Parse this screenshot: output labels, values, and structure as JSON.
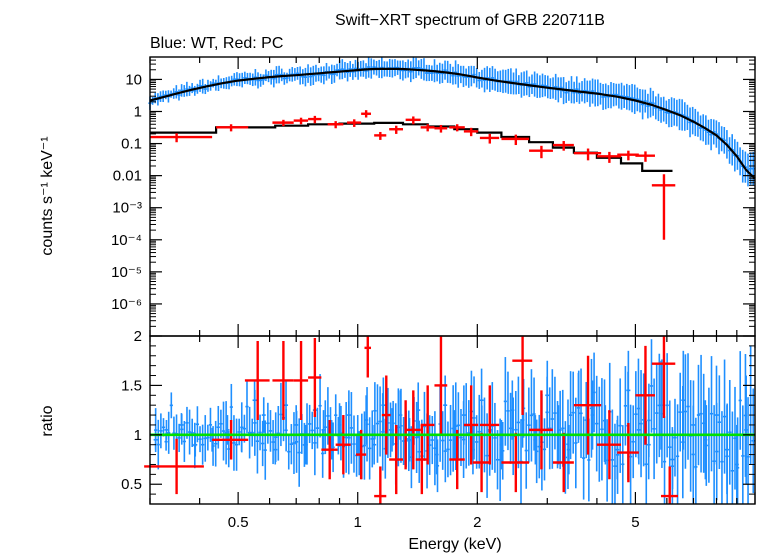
{
  "title": "Swift−XRT spectrum of GRB 220711B",
  "subtitle": "Blue: WT, Red: PC",
  "colors": {
    "wt": "#1e8fff",
    "pc": "#ff0000",
    "model": "#000000",
    "unity": "#00e000"
  },
  "chart_data": [
    {
      "type": "scatter",
      "panel": "spectrum",
      "xscale": "log",
      "yscale": "log",
      "xlim": [
        0.3,
        10
      ],
      "ylim": [
        1e-07,
        50
      ],
      "ylabel": "counts s⁻¹ keV⁻¹",
      "ytick_labels": [
        "10",
        "1",
        "0.1",
        "0.01",
        "10⁻³",
        "10⁻⁴",
        "10⁻⁵",
        "10⁻⁶"
      ],
      "ytick_values": [
        10,
        1,
        0.1,
        0.01,
        0.001,
        0.0001,
        1e-05,
        1e-06
      ],
      "series": [
        {
          "color": "#1e8fff",
          "sampled_points": true,
          "x": [
            0.3,
            0.32,
            0.35,
            0.38,
            0.42,
            0.46,
            0.5,
            0.55,
            0.6,
            0.65,
            0.7,
            0.75,
            0.8,
            0.85,
            0.9,
            0.95,
            1.0,
            1.05,
            1.1,
            1.2,
            1.3,
            1.4,
            1.5,
            1.6,
            1.7,
            1.8,
            1.9,
            2.0,
            2.2,
            2.4,
            2.6,
            2.8,
            3.0,
            3.3,
            3.6,
            4.0,
            4.5,
            5.0,
            5.5,
            6.0,
            6.5,
            7.0,
            7.5,
            8.0,
            8.5,
            9.0,
            9.5
          ],
          "y": [
            2.2,
            2.7,
            3.6,
            4.7,
            6.2,
            7.8,
            9.2,
            10.5,
            11.8,
            12.8,
            13.5,
            14.5,
            15.5,
            16.5,
            17.5,
            18.5,
            19.5,
            20.5,
            21.2,
            21.5,
            21.2,
            20,
            18.8,
            17.5,
            16,
            14.5,
            13,
            11.5,
            9.4,
            8,
            7,
            6.2,
            5.5,
            4.8,
            4.2,
            3.6,
            2.9,
            2.2,
            1.6,
            1.1,
            0.75,
            0.48,
            0.3,
            0.18,
            0.09,
            0.04,
            0.015
          ]
        },
        {
          "color": "#ff0000",
          "x": [
            0.35,
            0.48,
            0.65,
            0.72,
            0.78,
            0.88,
            0.98,
            1.05,
            1.14,
            1.25,
            1.38,
            1.5,
            1.62,
            1.78,
            1.93,
            2.15,
            2.5,
            2.9,
            3.3,
            3.8,
            4.3,
            4.8,
            5.3,
            5.9
          ],
          "xerr_lo": [
            0.05,
            0.04,
            0.04,
            0.03,
            0.03,
            0.04,
            0.04,
            0.03,
            0.04,
            0.05,
            0.06,
            0.06,
            0.06,
            0.08,
            0.08,
            0.12,
            0.2,
            0.2,
            0.2,
            0.3,
            0.3,
            0.3,
            0.3,
            0.4
          ],
          "xerr_hi": [
            0.08,
            0.05,
            0.04,
            0.03,
            0.03,
            0.04,
            0.04,
            0.03,
            0.04,
            0.05,
            0.06,
            0.06,
            0.06,
            0.08,
            0.08,
            0.12,
            0.2,
            0.2,
            0.2,
            0.3,
            0.3,
            0.3,
            0.3,
            0.4
          ],
          "y": [
            0.16,
            0.32,
            0.45,
            0.52,
            0.58,
            0.4,
            0.45,
            0.85,
            0.18,
            0.28,
            0.55,
            0.32,
            0.3,
            0.32,
            0.24,
            0.15,
            0.14,
            0.06,
            0.09,
            0.05,
            0.04,
            0.045,
            0.042,
            0.005
          ],
          "yerr_lo": [
            0.05,
            0.08,
            0.1,
            0.12,
            0.15,
            0.1,
            0.12,
            0.2,
            0.05,
            0.08,
            0.15,
            0.08,
            0.08,
            0.08,
            0.07,
            0.05,
            0.05,
            0.025,
            0.03,
            0.02,
            0.015,
            0.015,
            0.015,
            0.0049
          ],
          "yerr_hi": [
            0.05,
            0.08,
            0.1,
            0.12,
            0.15,
            0.1,
            0.12,
            0.25,
            0.05,
            0.08,
            0.15,
            0.08,
            0.08,
            0.08,
            0.07,
            0.05,
            0.05,
            0.025,
            0.03,
            0.02,
            0.015,
            0.015,
            0.015,
            0.006
          ]
        }
      ],
      "models": [
        {
          "color": "#000000",
          "x": [
            0.3,
            0.32,
            0.35,
            0.38,
            0.42,
            0.46,
            0.5,
            0.55,
            0.6,
            0.65,
            0.7,
            0.75,
            0.8,
            0.85,
            0.9,
            0.95,
            1.0,
            1.05,
            1.1,
            1.2,
            1.3,
            1.4,
            1.5,
            1.6,
            1.7,
            1.8,
            1.9,
            2.0,
            2.2,
            2.4,
            2.6,
            2.8,
            3.0,
            3.3,
            3.6,
            4.0,
            4.5,
            5.0,
            5.5,
            6.0,
            6.5,
            7.0,
            7.5,
            8.0,
            8.5,
            9.0,
            9.5,
            10
          ],
          "y": [
            2.2,
            2.7,
            3.6,
            4.7,
            6.2,
            7.8,
            9.2,
            10.5,
            11.8,
            12.8,
            13.5,
            14.5,
            15.5,
            16.5,
            17.5,
            18.5,
            19.5,
            20.5,
            21.2,
            21.5,
            21.2,
            20,
            18.8,
            17.5,
            16,
            14.5,
            13,
            11.5,
            9.4,
            8,
            7,
            6.2,
            5.5,
            4.8,
            4.2,
            3.6,
            2.9,
            2.2,
            1.6,
            1.1,
            0.75,
            0.48,
            0.3,
            0.18,
            0.09,
            0.04,
            0.015,
            0.008
          ]
        },
        {
          "color": "#000000",
          "x": [
            0.3,
            0.44,
            0.44,
            0.62,
            0.62,
            0.75,
            0.75,
            0.9,
            0.9,
            1.1,
            1.1,
            1.3,
            1.3,
            1.5,
            1.5,
            1.75,
            1.75,
            2.0,
            2.0,
            2.3,
            2.3,
            2.7,
            2.7,
            3.1,
            3.1,
            3.5,
            3.5,
            4.0,
            4.0,
            4.6,
            4.6,
            5.2,
            5.2,
            6.2
          ],
          "y": [
            0.22,
            0.22,
            0.32,
            0.32,
            0.36,
            0.36,
            0.4,
            0.4,
            0.42,
            0.42,
            0.44,
            0.44,
            0.4,
            0.4,
            0.34,
            0.34,
            0.28,
            0.28,
            0.22,
            0.22,
            0.16,
            0.16,
            0.11,
            0.11,
            0.075,
            0.075,
            0.052,
            0.052,
            0.036,
            0.036,
            0.024,
            0.024,
            0.014,
            0.014
          ]
        }
      ]
    },
    {
      "type": "scatter",
      "panel": "ratio",
      "xscale": "log",
      "xlim": [
        0.3,
        10
      ],
      "ylim": [
        0.3,
        2.0
      ],
      "xlabel": "Energy (keV)",
      "ylabel": "ratio",
      "xtick_labels": [
        "0.5",
        "1",
        "2",
        "5"
      ],
      "xtick_values": [
        0.5,
        1,
        2,
        5
      ],
      "ytick_labels": [
        "0.5",
        "1",
        "1.5",
        "2"
      ],
      "ytick_values": [
        0.5,
        1,
        1.5,
        2
      ],
      "unity_line": 1,
      "series": [
        {
          "color": "#1e8fff",
          "sampled_points": true,
          "x": [
            0.31,
            0.33,
            0.36,
            0.39,
            0.43,
            0.47,
            0.51,
            0.55,
            0.58,
            0.62,
            0.66,
            0.7,
            0.74,
            0.78,
            0.82,
            0.86,
            0.9,
            0.95,
            1.0,
            1.05,
            1.1,
            1.16,
            1.22,
            1.28,
            1.35,
            1.42,
            1.5,
            1.58,
            1.66,
            1.75,
            1.85,
            1.95,
            2.05,
            2.15,
            2.3,
            2.45,
            2.6,
            2.8,
            3.0,
            3.2,
            3.4,
            3.6,
            3.9,
            4.2,
            4.5,
            4.8,
            5.1,
            5.4,
            5.8,
            6.2,
            6.6,
            7.0,
            7.5,
            8.0,
            8.5,
            9.0,
            9.5
          ],
          "y": [
            0.95,
            1.05,
            1.1,
            0.9,
            0.95,
            1.05,
            0.95,
            1.35,
            1.2,
            0.85,
            1.3,
            1.1,
            0.9,
            1.25,
            1.05,
            0.95,
            1.1,
            1.2,
            1.0,
            1.15,
            0.9,
            1.3,
            1.05,
            1.2,
            0.95,
            1.25,
            1.1,
            0.8,
            1.3,
            1.0,
            1.2,
            0.85,
            1.35,
            1.05,
            0.9,
            1.25,
            1.15,
            0.95,
            1.4,
            1.0,
            0.85,
            1.3,
            1.2,
            1.0,
            0.85,
            1.45,
            1.05,
            0.9,
            1.3,
            0.75,
            1.35,
            1.1,
            0.95,
            1.2,
            0.85,
            0.7,
            1.05
          ],
          "yerr": [
            0.1,
            0.1,
            0.12,
            0.12,
            0.12,
            0.15,
            0.12,
            0.2,
            0.18,
            0.15,
            0.25,
            0.2,
            0.2,
            0.25,
            0.2,
            0.2,
            0.22,
            0.25,
            0.2,
            0.25,
            0.2,
            0.28,
            0.22,
            0.25,
            0.22,
            0.28,
            0.25,
            0.2,
            0.3,
            0.25,
            0.3,
            0.25,
            0.32,
            0.3,
            0.25,
            0.3,
            0.28,
            0.25,
            0.35,
            0.3,
            0.25,
            0.35,
            0.35,
            0.3,
            0.3,
            0.4,
            0.35,
            0.35,
            0.45,
            0.3,
            0.5,
            0.45,
            0.4,
            0.5,
            0.45,
            0.4,
            0.55
          ]
        },
        {
          "color": "#ff0000",
          "x": [
            0.35,
            0.48,
            0.56,
            0.65,
            0.72,
            0.78,
            0.85,
            0.92,
            1.02,
            1.06,
            1.14,
            1.18,
            1.25,
            1.32,
            1.38,
            1.45,
            1.5,
            1.62,
            1.78,
            1.93,
            2.05,
            2.15,
            2.5,
            2.6,
            2.9,
            3.3,
            3.8,
            4.3,
            4.8,
            5.3,
            5.9,
            6.1
          ],
          "xerr": [
            0.06,
            0.05,
            0.04,
            0.04,
            0.03,
            0.03,
            0.04,
            0.04,
            0.03,
            0.02,
            0.04,
            0.03,
            0.05,
            0.05,
            0.06,
            0.05,
            0.06,
            0.06,
            0.08,
            0.08,
            0.1,
            0.12,
            0.2,
            0.15,
            0.2,
            0.2,
            0.3,
            0.3,
            0.3,
            0.3,
            0.4,
            0.3
          ],
          "y": [
            0.68,
            0.95,
            1.55,
            1.55,
            1.55,
            1.58,
            0.85,
            0.9,
            0.8,
            1.88,
            0.38,
            1.2,
            0.75,
            1.0,
            1.05,
            0.75,
            1.1,
            1.5,
            0.75,
            1.1,
            0.72,
            1.1,
            0.72,
            1.75,
            1.05,
            0.72,
            1.3,
            0.9,
            0.82,
            1.4,
            1.72,
            0.38
          ],
          "yerr": [
            0.28,
            0.2,
            0.4,
            0.4,
            0.4,
            0.4,
            0.3,
            0.3,
            0.25,
            0.3,
            0.3,
            0.4,
            0.35,
            0.35,
            0.4,
            0.35,
            0.4,
            0.5,
            0.3,
            0.4,
            0.3,
            0.4,
            0.3,
            0.55,
            0.4,
            0.3,
            0.5,
            0.35,
            0.3,
            0.5,
            0.55,
            0.3
          ]
        }
      ]
    }
  ]
}
